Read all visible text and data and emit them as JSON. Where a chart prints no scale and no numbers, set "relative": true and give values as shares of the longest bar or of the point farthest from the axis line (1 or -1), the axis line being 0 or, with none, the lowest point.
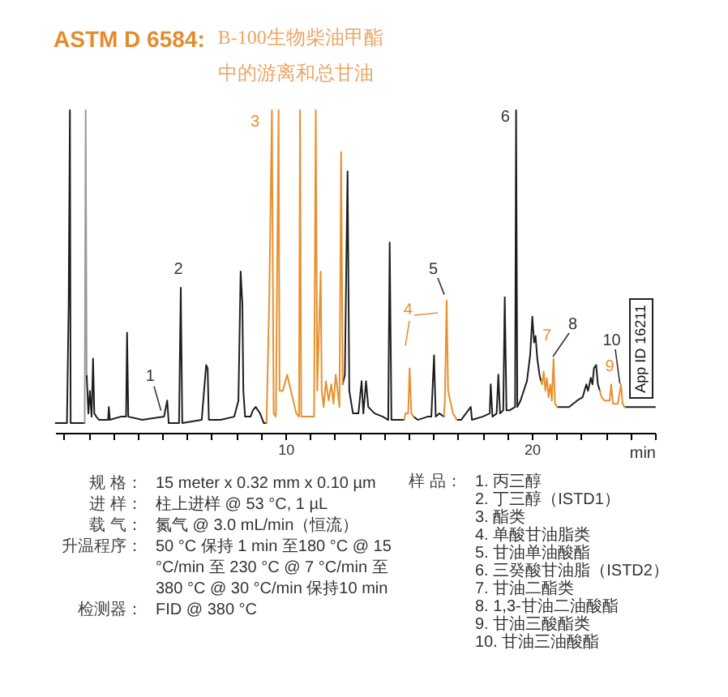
{
  "chart_data": {
    "type": "line",
    "title": "ASTM D 6584:",
    "subtitle": "B-100生物柴油甲酯中的游离和总甘油",
    "xlabel": "min",
    "relative": true,
    "xlim": [
      0.65,
      25
    ],
    "xticks": [
      {
        "value": 1,
        "label": null
      },
      {
        "value": 2,
        "label": null
      },
      {
        "value": 3,
        "label": null
      },
      {
        "value": 4,
        "label": null
      },
      {
        "value": 5,
        "label": null
      },
      {
        "value": 6,
        "label": null
      },
      {
        "value": 7,
        "label": null
      },
      {
        "value": 8,
        "label": null
      },
      {
        "value": 9,
        "label": null
      },
      10,
      {
        "value": 11,
        "label": null
      },
      {
        "value": 12,
        "label": null
      },
      {
        "value": 13,
        "label": null
      },
      {
        "value": 14,
        "label": null
      },
      {
        "value": 15,
        "label": null
      },
      {
        "value": 16,
        "label": null
      },
      {
        "value": 17,
        "label": null
      },
      {
        "value": 18,
        "label": null
      },
      {
        "value": 19,
        "label": null
      },
      20,
      {
        "value": 21,
        "label": null
      },
      {
        "value": 22,
        "label": null
      },
      {
        "value": 23,
        "label": null
      },
      {
        "value": 24,
        "label": null
      },
      {
        "value": 25,
        "label": null
      }
    ],
    "series": [
      {
        "color": "#1e1e1e",
        "x": [
          0.67,
          1.13,
          1.2,
          1.25,
          1.28,
          1.85,
          1.89,
          1.93,
          2.0,
          2.06,
          2.13,
          2.19,
          2.24,
          2.32,
          2.43,
          2.8,
          2.83,
          2.87,
          3.31,
          3.53,
          3.57,
          3.62,
          4.19,
          5.07,
          5.2,
          5.26,
          5.68,
          5.75,
          5.81,
          6.6,
          6.78,
          6.84,
          6.89,
          7.37,
          7.92,
          8.09,
          8.18,
          8.25,
          8.29,
          8.36,
          8.58,
          8.68,
          8.79,
          8.97,
          9.12,
          9.23,
          10.5,
          12.32,
          12.41,
          12.52,
          12.59,
          12.74,
          12.96,
          13.09,
          13.16,
          13.27,
          13.36,
          13.62,
          13.95,
          14.17,
          14.23,
          14.3,
          14.82,
          15.0,
          15.2,
          15.37,
          15.77,
          15.92,
          16.03,
          16.1,
          16.25,
          16.43,
          16.7,
          16.95,
          17.13,
          17.52,
          17.57,
          18.0,
          18.29,
          18.33,
          18.4,
          18.57,
          18.64,
          18.71,
          18.84,
          18.9,
          18.97,
          19.1,
          19.32,
          19.36,
          19.41,
          19.54,
          19.67,
          19.8,
          19.93,
          20.02,
          20.09,
          20.15,
          20.22,
          20.31,
          20.37,
          20.7,
          21.03,
          21.18,
          21.51,
          21.84,
          22.06,
          22.21,
          22.28,
          22.39,
          22.46,
          22.52,
          22.61,
          22.68,
          22.76,
          23.3,
          23.77,
          24.14,
          25.0
        ],
        "values": [
          0.03,
          0.03,
          0.4,
          1.0,
          0.03,
          0.03,
          null,
          0.18,
          0.06,
          0.13,
          0.05,
          0.23,
          0.06,
          0.05,
          0.04,
          0.04,
          0.08,
          0.04,
          0.05,
          0.05,
          0.31,
          0.05,
          0.04,
          0.05,
          0.1,
          0.03,
          0.03,
          0.45,
          0.03,
          0.04,
          0.21,
          0.2,
          0.04,
          0.04,
          0.05,
          0.1,
          0.5,
          0.4,
          0.13,
          0.05,
          0.05,
          0.07,
          0.08,
          0.06,
          0.03,
          0.03,
          null,
          0.15,
          0.18,
          0.81,
          0.13,
          0.06,
          0.06,
          0.16,
          0.06,
          0.16,
          0.08,
          0.06,
          0.05,
          0.04,
          0.59,
          0.04,
          0.04,
          null,
          0.05,
          0.04,
          0.05,
          0.05,
          0.24,
          0.05,
          0.06,
          0.05,
          null,
          0.04,
          0.04,
          0.08,
          0.04,
          0.05,
          0.06,
          0.15,
          0.05,
          0.06,
          0.18,
          0.06,
          0.07,
          0.42,
          0.07,
          0.07,
          0.08,
          1.0,
          0.08,
          0.1,
          0.13,
          0.16,
          0.24,
          0.36,
          0.28,
          0.3,
          0.23,
          0.18,
          0.16,
          null,
          0.08,
          0.08,
          0.08,
          0.1,
          0.11,
          0.15,
          0.13,
          0.17,
          0.15,
          0.2,
          0.21,
          0.15,
          0.13,
          null,
          0.08,
          0.08,
          0.08
        ]
      },
      {
        "color": "#9a9a9a",
        "x": [
          1.85,
          1.89,
          1.93
        ],
        "values": [
          0.03,
          1.0,
          0.18
        ]
      },
      {
        "color": "#e8902f",
        "x": [
          9.23,
          9.34,
          9.45,
          9.52,
          9.61,
          9.72,
          9.76,
          9.89,
          10.07,
          10.22,
          10.44,
          10.55,
          10.59,
          10.64,
          11.16,
          11.23,
          11.29,
          11.43,
          11.47,
          11.55,
          11.64,
          11.75,
          11.86,
          11.95,
          12.04,
          12.19,
          12.26,
          12.32,
          13.5,
          14.82,
          14.87,
          14.98,
          15.04,
          15.11,
          15.2,
          15.8,
          16.43,
          16.47,
          16.54,
          16.6,
          16.8,
          16.95,
          18.5,
          20.37,
          20.42,
          20.48,
          20.55,
          20.61,
          20.68,
          20.75,
          20.81,
          20.88,
          20.94,
          21.03,
          21.9,
          22.76,
          22.83,
          22.94,
          23.05,
          23.16,
          23.22,
          23.29,
          23.49,
          23.62,
          23.68,
          23.77
        ],
        "values": [
          0.03,
          0.41,
          1.0,
          0.06,
          0.05,
          1.0,
          0.13,
          0.13,
          0.18,
          0.13,
          0.06,
          0.05,
          1.0,
          0.05,
          0.05,
          1.0,
          0.13,
          0.5,
          0.13,
          0.08,
          0.16,
          0.1,
          0.15,
          0.09,
          0.18,
          0.08,
          0.87,
          0.15,
          null,
          0.04,
          0.06,
          0.06,
          0.2,
          0.06,
          0.05,
          null,
          0.05,
          0.1,
          0.41,
          0.13,
          0.06,
          0.04,
          null,
          0.16,
          0.15,
          0.19,
          0.13,
          0.17,
          0.11,
          0.15,
          0.1,
          0.23,
          0.09,
          0.08,
          null,
          0.13,
          0.11,
          0.1,
          0.1,
          0.1,
          0.15,
          0.09,
          0.09,
          0.15,
          0.09,
          0.08
        ]
      }
    ],
    "annotations": [
      "1",
      "2",
      "3",
      "4",
      "5",
      "6",
      "7",
      "8",
      "9",
      "10",
      "App ID 16211",
      "规 格： 15 meter x 0.32 mm x 0.10 µm",
      "进 样： 柱上进样 @ 53 °C, 1 µL",
      "载 气： 氮气 @ 3.0 mL/min（恒流）",
      "升温程序： 50 °C 保持 1 min 至180 °C @ 15 °C/min 至 230 °C @ 7 °C/min 至 380 °C @ 30 °C/min 保持10 min",
      "检测器： FID @ 380 °C",
      "样 品： 1. 丙三醇",
      "2. 丁三醇（ISTD1）",
      "3. 酯类",
      "4. 单酸甘油脂类",
      "5. 甘油单油酸酯",
      "6. 三癸酸甘油脂（ISTD2）",
      "7. 甘油二酯类",
      "8. 1,3-甘油二油酸酯",
      "9. 甘油三酸酯类",
      "10. 甘油三油酸酯"
    ]
  }
}
